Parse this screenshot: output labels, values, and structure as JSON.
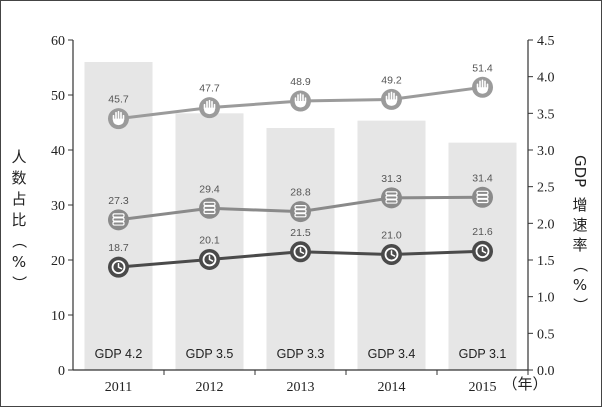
{
  "chart_data": {
    "type": "bar+line",
    "title": "",
    "categories": [
      "2011",
      "2012",
      "2013",
      "2014",
      "2015"
    ],
    "x_axis_unit": "（年）",
    "left_axis": {
      "label": "人数占比（%）",
      "ylim": [
        0,
        60
      ],
      "ticks": [
        "0",
        "10",
        "20",
        "30",
        "40",
        "50",
        "60"
      ]
    },
    "right_axis": {
      "label": "GDP 增速率（%）",
      "ylim": [
        0,
        4.5
      ],
      "ticks": [
        "0.0",
        "0.5",
        "1.0",
        "1.5",
        "2.0",
        "2.5",
        "3.0",
        "3.5",
        "4.0",
        "4.5"
      ]
    },
    "bars": {
      "axis": "right",
      "values": [
        4.2,
        3.5,
        3.3,
        3.4,
        3.1
      ],
      "labels": [
        "GDP 4.2",
        "GDP 3.5",
        "GDP 3.3",
        "GDP 3.4",
        "GDP 3.1"
      ],
      "color": "#e6e6e6"
    },
    "series": [
      {
        "axis": "left",
        "icon": "hand-icon",
        "values": [
          45.7,
          47.7,
          48.9,
          49.2,
          51.4
        ],
        "labels": [
          "45.7",
          "47.7",
          "48.9",
          "49.2",
          "51.4"
        ],
        "color": "#9b9b9b"
      },
      {
        "axis": "left",
        "icon": "coin-stack-icon",
        "values": [
          27.3,
          29.4,
          28.8,
          31.3,
          31.4
        ],
        "labels": [
          "27.3",
          "29.4",
          "28.8",
          "31.3",
          "31.4"
        ],
        "color": "#8a8a8a"
      },
      {
        "axis": "left",
        "icon": "clock-icon",
        "values": [
          18.7,
          20.1,
          21.5,
          21.0,
          21.6
        ],
        "labels": [
          "18.7",
          "20.1",
          "21.5",
          "21.0",
          "21.6"
        ],
        "color": "#4a4a4a"
      }
    ],
    "grid": false,
    "legend": "none"
  }
}
